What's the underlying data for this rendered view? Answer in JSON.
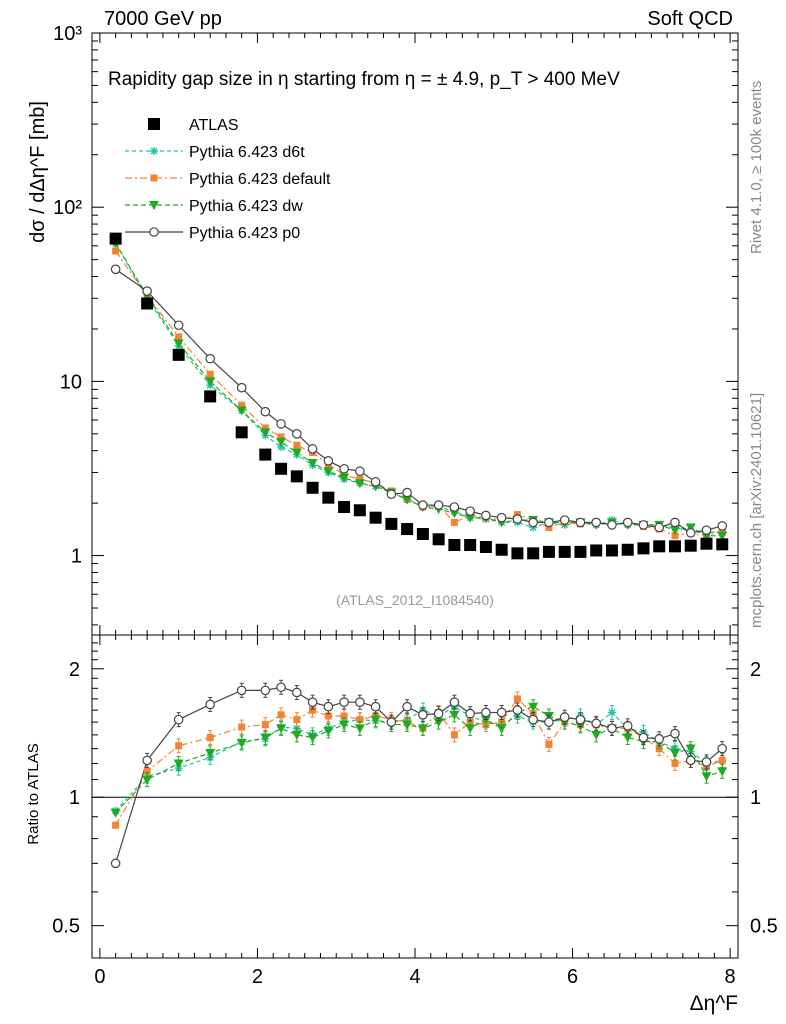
{
  "header": {
    "left": "7000 GeV pp",
    "right": "Soft QCD"
  },
  "sidebar": {
    "rivet": "Rivet 4.1.0, ≥ 100k events",
    "mcplots": "mcplots.cern.ch [arXiv:2401.10621]"
  },
  "watermark": "(ATLAS_2012_I1084540)",
  "colors": {
    "atlas": "#000000",
    "d6t": "#22c3a5",
    "default": "#f58233",
    "dw": "#1faa1f",
    "p0": "#444444"
  },
  "chart_data": [
    {
      "type": "scatter",
      "title": "Rapidity gap size in η starting from η = ± 4.9, p_T > 400 MeV",
      "ylabel": "dσ / dΔη^F [mb]",
      "yscale": "log",
      "ylim": [
        0.35,
        1000
      ],
      "xlim": [
        -0.1,
        8.1
      ],
      "ytick_labels": [
        "1",
        "10",
        "10²",
        "10³"
      ],
      "legend": [
        "ATLAS",
        "Pythia 6.423 d6t",
        "Pythia 6.423 default",
        "Pythia 6.423 dw",
        "Pythia 6.423 p0"
      ],
      "legend_position": "upper-left",
      "x": [
        0.2,
        0.6,
        1.0,
        1.4,
        1.8,
        2.1,
        2.3,
        2.5,
        2.7,
        2.9,
        3.1,
        3.3,
        3.5,
        3.7,
        3.9,
        4.1,
        4.3,
        4.5,
        4.7,
        4.9,
        5.1,
        5.3,
        5.5,
        5.7,
        5.9,
        6.1,
        6.3,
        6.5,
        6.7,
        6.9,
        7.1,
        7.3,
        7.5,
        7.7,
        7.9
      ],
      "series": [
        {
          "name": "ATLAS",
          "values": [
            66,
            28,
            14.2,
            8.2,
            5.1,
            3.8,
            3.15,
            2.85,
            2.45,
            2.15,
            1.9,
            1.82,
            1.65,
            1.52,
            1.42,
            1.33,
            1.24,
            1.15,
            1.15,
            1.12,
            1.08,
            1.03,
            1.03,
            1.05,
            1.05,
            1.05,
            1.07,
            1.07,
            1.08,
            1.1,
            1.13,
            1.13,
            1.14,
            1.17,
            1.16
          ]
        },
        {
          "name": "Pythia 6.423 d6t",
          "values": [
            62,
            30,
            16,
            9.5,
            6.8,
            4.9,
            4.2,
            3.8,
            3.3,
            3.0,
            2.75,
            2.6,
            2.5,
            2.3,
            2.1,
            1.95,
            1.9,
            1.8,
            1.65,
            1.62,
            1.55,
            1.55,
            1.45,
            1.55,
            1.5,
            1.55,
            1.5,
            1.6,
            1.5,
            1.5,
            1.48,
            1.45,
            1.38,
            1.35,
            1.38
          ]
        },
        {
          "name": "Pythia 6.423 default",
          "values": [
            56,
            31,
            18,
            11,
            7.3,
            5.4,
            4.8,
            4.3,
            3.9,
            3.35,
            2.9,
            2.75,
            2.6,
            2.35,
            2.1,
            1.9,
            1.93,
            1.55,
            1.7,
            1.65,
            1.6,
            1.72,
            1.6,
            1.45,
            1.55,
            1.52,
            1.55,
            1.5,
            1.55,
            1.47,
            1.42,
            1.3,
            1.35,
            1.3,
            1.38
          ]
        },
        {
          "name": "Pythia 6.423 dw",
          "values": [
            62,
            31,
            16.5,
            10,
            6.8,
            5.1,
            4.5,
            3.9,
            3.4,
            3.05,
            2.8,
            2.6,
            2.5,
            2.3,
            2.1,
            1.9,
            1.85,
            1.75,
            1.65,
            1.65,
            1.55,
            1.6,
            1.6,
            1.55,
            1.55,
            1.55,
            1.5,
            1.55,
            1.5,
            1.5,
            1.5,
            1.4,
            1.45,
            1.3,
            1.3
          ]
        },
        {
          "name": "Pythia 6.423 p0",
          "values": [
            44,
            33,
            21,
            13.5,
            9.2,
            6.7,
            5.7,
            5.0,
            4.1,
            3.5,
            3.15,
            3.05,
            2.65,
            2.25,
            2.3,
            1.95,
            1.95,
            1.9,
            1.8,
            1.7,
            1.65,
            1.62,
            1.55,
            1.55,
            1.6,
            1.55,
            1.55,
            1.5,
            1.55,
            1.5,
            1.45,
            1.55,
            1.35,
            1.4,
            1.48
          ]
        }
      ]
    },
    {
      "type": "scatter",
      "ylabel": "Ratio to ATLAS",
      "xlabel": "Δη^F",
      "yscale": "log",
      "ylim": [
        0.42,
        2.4
      ],
      "xlim": [
        -0.1,
        8.1
      ],
      "ytick_labels": [
        "0.5",
        "1",
        "2"
      ],
      "xtick_labels": [
        "0",
        "2",
        "4",
        "6",
        "8"
      ],
      "reference_line": 1,
      "x": [
        0.2,
        0.6,
        1.0,
        1.4,
        1.8,
        2.1,
        2.3,
        2.5,
        2.7,
        2.9,
        3.1,
        3.3,
        3.5,
        3.7,
        3.9,
        4.1,
        4.3,
        4.5,
        4.7,
        4.9,
        5.1,
        5.3,
        5.5,
        5.7,
        5.9,
        6.1,
        6.3,
        6.5,
        6.7,
        6.9,
        7.1,
        7.3,
        7.5,
        7.7,
        7.9
      ],
      "series": [
        {
          "name": "Pythia 6.423 d6t",
          "values": [
            0.93,
            1.12,
            1.17,
            1.24,
            1.35,
            1.37,
            1.46,
            1.45,
            1.4,
            1.45,
            1.5,
            1.52,
            1.51,
            1.5,
            1.52,
            1.6,
            1.55,
            1.63,
            1.55,
            1.5,
            1.48,
            1.55,
            1.5,
            1.5,
            1.52,
            1.55,
            1.48,
            1.58,
            1.45,
            1.42,
            1.35,
            1.3,
            1.28,
            1.2,
            1.22
          ]
        },
        {
          "name": "Pythia 6.423 default",
          "values": [
            0.86,
            1.15,
            1.32,
            1.38,
            1.46,
            1.48,
            1.56,
            1.52,
            1.6,
            1.55,
            1.55,
            1.52,
            1.55,
            1.52,
            1.5,
            1.45,
            1.58,
            1.4,
            1.5,
            1.48,
            1.5,
            1.7,
            1.57,
            1.33,
            1.5,
            1.48,
            1.48,
            1.45,
            1.45,
            1.38,
            1.3,
            1.2,
            1.22,
            1.18,
            1.22
          ]
        },
        {
          "name": "Pythia 6.423 dw",
          "values": [
            0.92,
            1.1,
            1.2,
            1.27,
            1.34,
            1.38,
            1.45,
            1.4,
            1.38,
            1.43,
            1.48,
            1.45,
            1.52,
            1.48,
            1.48,
            1.45,
            1.5,
            1.56,
            1.45,
            1.52,
            1.45,
            1.58,
            1.63,
            1.55,
            1.5,
            1.47,
            1.4,
            1.45,
            1.38,
            1.35,
            1.35,
            1.27,
            1.3,
            1.12,
            1.15
          ]
        },
        {
          "name": "Pythia 6.423 p0",
          "values": [
            0.7,
            1.22,
            1.52,
            1.65,
            1.78,
            1.78,
            1.81,
            1.76,
            1.67,
            1.63,
            1.67,
            1.67,
            1.63,
            1.5,
            1.63,
            1.56,
            1.57,
            1.67,
            1.57,
            1.58,
            1.58,
            1.6,
            1.52,
            1.5,
            1.54,
            1.52,
            1.49,
            1.45,
            1.47,
            1.38,
            1.37,
            1.41,
            1.22,
            1.21,
            1.3
          ]
        }
      ]
    }
  ]
}
